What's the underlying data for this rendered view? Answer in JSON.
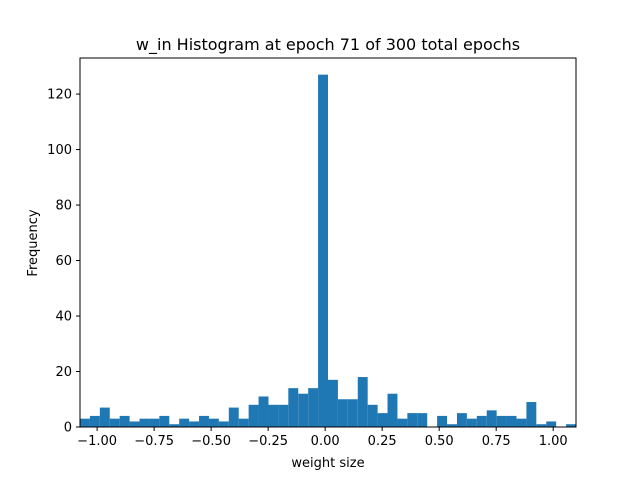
{
  "chart_data": {
    "type": "bar",
    "title": "w_in Histogram at epoch 71 of 300 total epochs",
    "xlabel": "weight size",
    "ylabel": "Frequency",
    "xlim": [
      -1.075,
      1.1
    ],
    "ylim": [
      0,
      133
    ],
    "xticks": [
      -1.0,
      -0.75,
      -0.5,
      -0.25,
      0.0,
      0.25,
      0.5,
      0.75,
      1.0
    ],
    "xtick_labels": [
      "−1.00",
      "−0.75",
      "−0.50",
      "−0.25",
      "0.00",
      "0.25",
      "0.50",
      "0.75",
      "1.00"
    ],
    "yticks": [
      0,
      20,
      40,
      60,
      80,
      100,
      120
    ],
    "ytick_labels": [
      "0",
      "20",
      "40",
      "60",
      "80",
      "100",
      "120"
    ],
    "bin_start": -1.075,
    "bin_width": 0.0435,
    "bar_color": "#1f77b4",
    "grid": false,
    "counts": [
      3,
      4,
      7,
      3,
      4,
      2,
      3,
      3,
      4,
      1,
      3,
      2,
      4,
      3,
      2,
      7,
      3,
      8,
      11,
      8,
      8,
      14,
      12,
      14,
      127,
      17,
      10,
      10,
      18,
      8,
      5,
      12,
      3,
      5,
      5,
      0,
      4,
      1,
      5,
      3,
      4,
      6,
      4,
      4,
      3,
      9,
      1,
      2,
      0,
      1
    ]
  }
}
